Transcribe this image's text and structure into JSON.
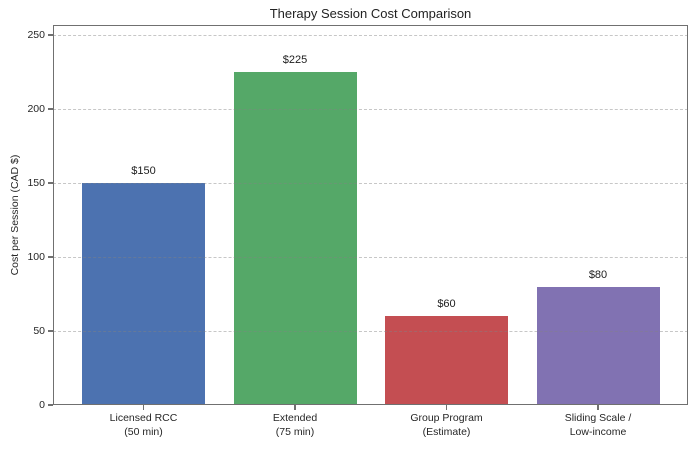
{
  "chart_data": {
    "type": "bar",
    "title": "Therapy Session Cost Comparison",
    "xlabel": "",
    "ylabel": "Cost per Session (CAD $)",
    "categories": [
      "Licensed RCC\n(50 min)",
      "Extended\n(75 min)",
      "Group Program\n(Estimate)",
      "Sliding Scale /\nLow-income"
    ],
    "values": [
      150,
      225,
      60,
      80
    ],
    "value_labels": [
      "$150",
      "$225",
      "$60",
      "$80"
    ],
    "bar_colors": [
      "#4C72B0",
      "#55A868",
      "#C44E52",
      "#8172B2"
    ],
    "yticks": [
      0,
      50,
      100,
      150,
      200,
      250
    ],
    "ylim": [
      0,
      257
    ],
    "grid": "horizontal-dashed",
    "grid_color": "#c9c9c9",
    "spine_color": "#707070",
    "text_color": "#262626",
    "background_color": "#ffffff",
    "legend": "none"
  }
}
